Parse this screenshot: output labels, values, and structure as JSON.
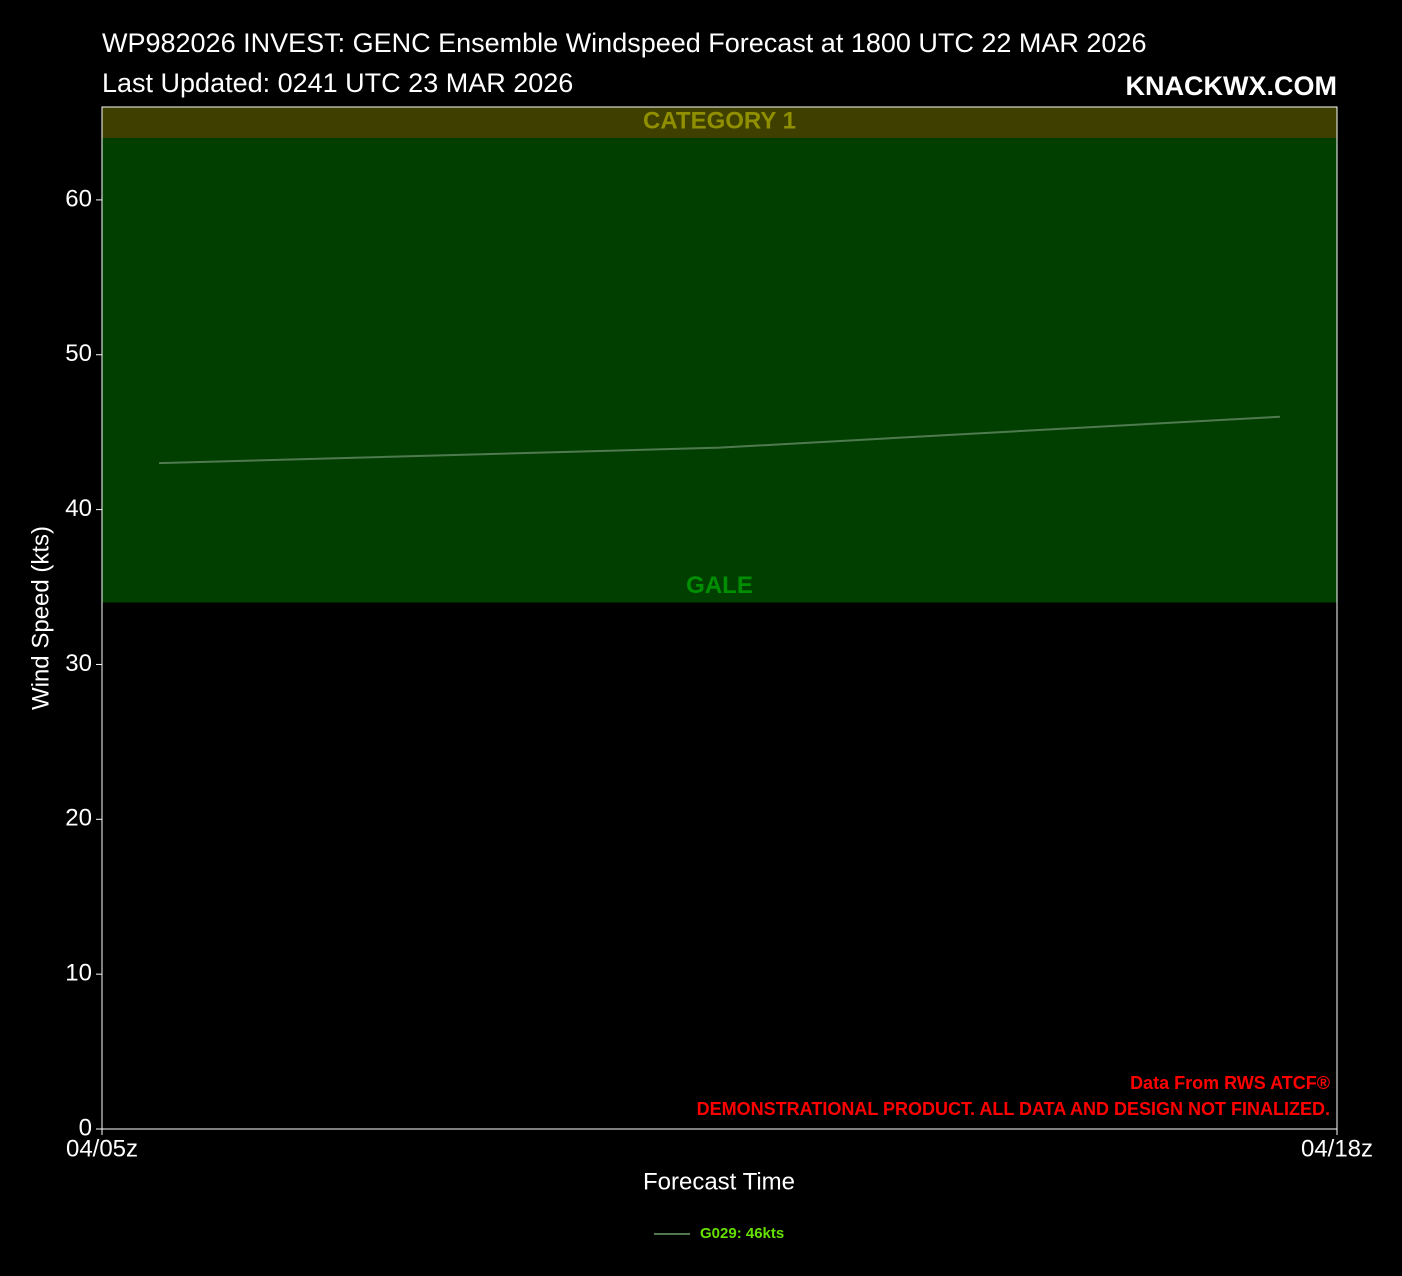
{
  "chart_data": {
    "type": "line",
    "title": "WP982026 INVEST: GENC Ensemble Windspeed Forecast at 1800 UTC 22 MAR 2026",
    "subtitle": "Last Updated: 0241 UTC 23 MAR 2026",
    "watermark": "KNACKWX.COM",
    "x_label": "Forecast Time",
    "y_label": "Wind Speed (kts)",
    "annotations": [
      "Data From RWS ATCF®",
      "DEMONSTRATIONAL PRODUCT. ALL DATA AND DESIGN NOT FINALIZED."
    ],
    "x": [
      5.6,
      11.5,
      17.4
    ],
    "series": [
      {
        "name": "G029: 46kts",
        "color": "#4f7a4f",
        "label_color": "#66e000",
        "values": [
          43,
          44,
          46
        ]
      }
    ],
    "bands": [
      {
        "name": "GALE",
        "from": 34,
        "to": 64,
        "color": "#003f00",
        "label_color": "#008f00"
      },
      {
        "name": "CATEGORY 1",
        "from": 64,
        "to": 66,
        "color": "#3f3f00",
        "label_color": "#8f8f00"
      }
    ],
    "xlim": [
      5,
      18
    ],
    "xticks": [
      {
        "value": 5,
        "label": "04/05z"
      },
      {
        "value": 18,
        "label": "04/18z"
      }
    ],
    "ylim": [
      0,
      66
    ],
    "yticks": [
      0,
      10,
      20,
      30,
      40,
      50,
      60
    ],
    "grid": false
  }
}
